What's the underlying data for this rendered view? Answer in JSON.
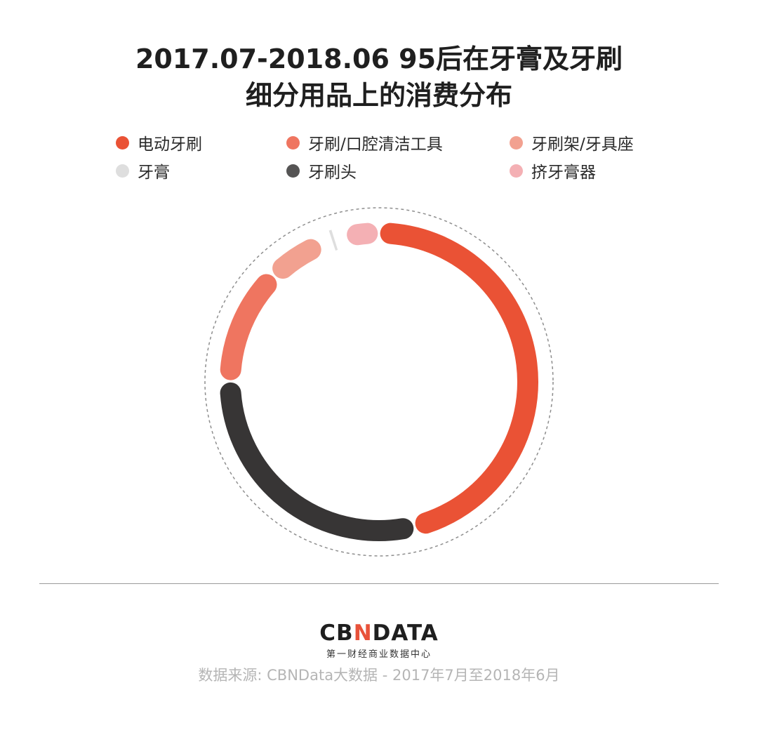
{
  "title_line1": "2017.07-2018.06 95后在牙膏及牙刷",
  "title_line2": "细分用品上的消费分布",
  "chart_data": {
    "type": "pie",
    "style": "donut-ring",
    "title": "2017.07-2018.06 95后在牙膏及牙刷细分用品上的消费分布",
    "legend_position": "top",
    "data_labels": "none",
    "series": [
      {
        "name": "电动牙刷",
        "value": 48.8,
        "color": "#ea5235"
      },
      {
        "name": "牙刷/口腔清洁工具",
        "value": 11.2,
        "color": "#ef7560"
      },
      {
        "name": "牙刷架/牙具座",
        "value": 4.0,
        "color": "#f2a190"
      },
      {
        "name": "牙膏",
        "value": 0.3,
        "color": "#dedede"
      },
      {
        "name": "牙刷头",
        "value": 29.5,
        "color": "#373535"
      },
      {
        "name": "挤牙膏器",
        "value": 1.2,
        "color": "#f4b0b4"
      }
    ]
  },
  "legend": [
    {
      "label": "电动牙刷",
      "color": "#ea5235"
    },
    {
      "label": "牙刷/口腔清洁工具",
      "color": "#ef7560"
    },
    {
      "label": "牙刷架/牙具座",
      "color": "#f2a190"
    },
    {
      "label": "牙膏",
      "color": "#dedede"
    },
    {
      "label": "牙刷头",
      "color": "#555454"
    },
    {
      "label": "挤牙膏器",
      "color": "#f4b0b4"
    }
  ],
  "logo": {
    "part1": "CB",
    "accent": "N",
    "part2": "DATA",
    "sub": "第一财经商业数据中心"
  },
  "source": "数据来源: CBNData大数据 - 2017年7月至2018年6月"
}
